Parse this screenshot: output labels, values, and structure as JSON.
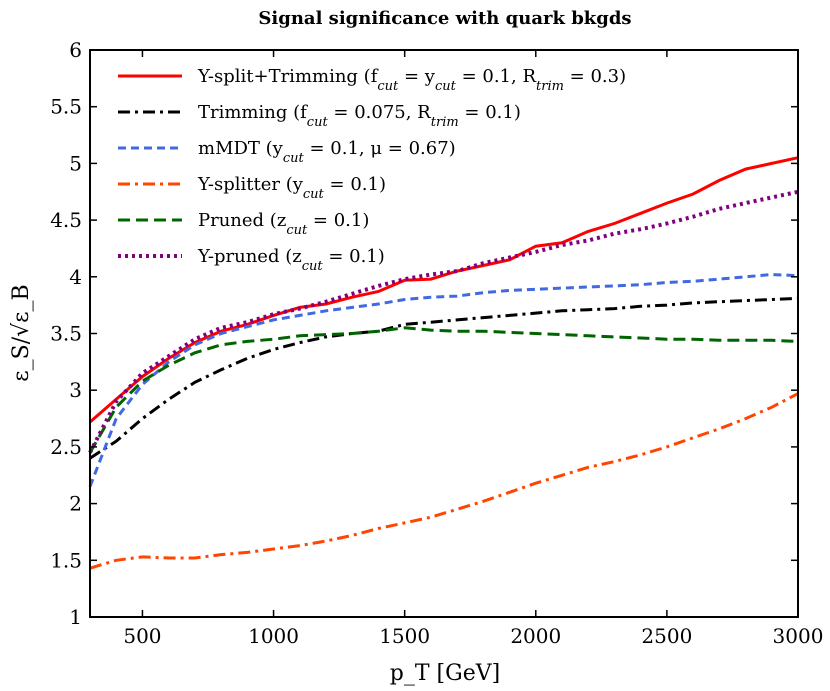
{
  "chart_data": {
    "type": "line",
    "title": "Signal significance with quark bkgds",
    "xlabel": "p_T [GeV]",
    "ylabel": "ε_S/√ε_B",
    "xlim": [
      300,
      3000
    ],
    "ylim": [
      1,
      6
    ],
    "xticks": [
      500,
      1000,
      1500,
      2000,
      2500,
      3000
    ],
    "yticks": [
      1,
      1.5,
      2,
      2.5,
      3,
      3.5,
      4,
      4.5,
      5,
      5.5,
      6
    ],
    "grid": false,
    "legend_position": "top-left",
    "x": [
      300,
      400,
      500,
      600,
      700,
      800,
      900,
      1000,
      1100,
      1200,
      1300,
      1400,
      1500,
      1600,
      1700,
      1800,
      1900,
      2000,
      2100,
      2200,
      2300,
      2400,
      2500,
      2600,
      2700,
      2800,
      2900,
      3000
    ],
    "series": [
      {
        "name": "Y-split+Trimming (f_cut = y_cut = 0.1, R_trim = 0.3)",
        "color": "#ff0000",
        "style": "solid",
        "values": [
          2.72,
          2.92,
          3.12,
          3.28,
          3.42,
          3.52,
          3.58,
          3.66,
          3.73,
          3.76,
          3.82,
          3.87,
          3.97,
          3.98,
          4.05,
          4.1,
          4.15,
          4.27,
          4.3,
          4.4,
          4.47,
          4.56,
          4.65,
          4.73,
          4.85,
          4.95,
          5.0,
          5.05
        ]
      },
      {
        "name": "Trimming (f_cut = 0.075, R_trim = 0.1)",
        "color": "#000000",
        "style": "dashdot",
        "values": [
          2.4,
          2.55,
          2.75,
          2.92,
          3.07,
          3.18,
          3.28,
          3.36,
          3.42,
          3.47,
          3.5,
          3.52,
          3.58,
          3.6,
          3.62,
          3.64,
          3.66,
          3.68,
          3.7,
          3.71,
          3.72,
          3.74,
          3.75,
          3.77,
          3.78,
          3.79,
          3.8,
          3.81
        ]
      },
      {
        "name": "mMDT (y_cut = 0.1, μ = 0.67)",
        "color": "#4169e1",
        "style": "dashed",
        "values": [
          2.15,
          2.75,
          3.05,
          3.25,
          3.4,
          3.5,
          3.56,
          3.62,
          3.66,
          3.7,
          3.73,
          3.76,
          3.8,
          3.82,
          3.83,
          3.86,
          3.88,
          3.89,
          3.9,
          3.91,
          3.92,
          3.93,
          3.95,
          3.96,
          3.98,
          4.0,
          4.02,
          4.01
        ]
      },
      {
        "name": "Y-splitter (y_cut = 0.1)",
        "color": "#ff4500",
        "style": "dashdot",
        "values": [
          1.43,
          1.5,
          1.53,
          1.52,
          1.52,
          1.55,
          1.57,
          1.6,
          1.63,
          1.67,
          1.72,
          1.78,
          1.83,
          1.88,
          1.95,
          2.02,
          2.1,
          2.18,
          2.25,
          2.32,
          2.37,
          2.43,
          2.5,
          2.58,
          2.66,
          2.75,
          2.85,
          2.97
        ]
      },
      {
        "name": "Pruned (z_cut = 0.1)",
        "color": "#006400",
        "style": "longdash",
        "values": [
          2.45,
          2.85,
          3.08,
          3.22,
          3.33,
          3.4,
          3.43,
          3.45,
          3.48,
          3.49,
          3.5,
          3.52,
          3.55,
          3.53,
          3.52,
          3.52,
          3.51,
          3.5,
          3.49,
          3.48,
          3.47,
          3.46,
          3.45,
          3.45,
          3.44,
          3.44,
          3.44,
          3.43
        ]
      },
      {
        "name": "Y-pruned (z_cut = 0.1)",
        "color": "#800080",
        "style": "dotted",
        "values": [
          2.45,
          2.9,
          3.15,
          3.3,
          3.45,
          3.55,
          3.6,
          3.67,
          3.72,
          3.78,
          3.85,
          3.92,
          3.98,
          4.02,
          4.05,
          4.12,
          4.17,
          4.22,
          4.28,
          4.32,
          4.38,
          4.42,
          4.47,
          4.53,
          4.6,
          4.65,
          4.7,
          4.75
        ]
      }
    ]
  }
}
